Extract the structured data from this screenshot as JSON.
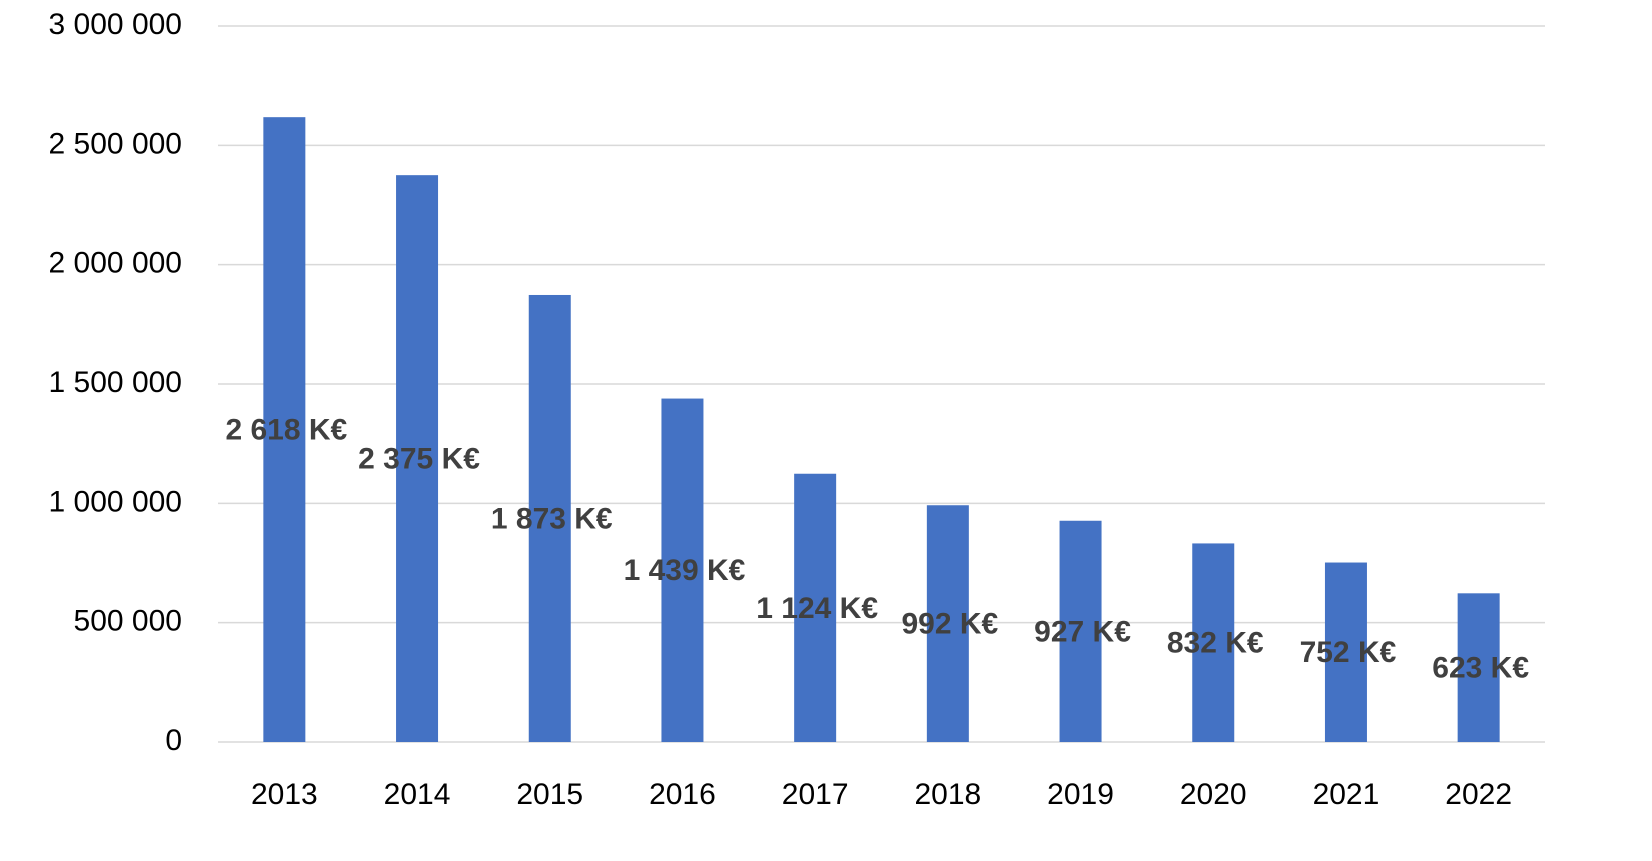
{
  "chart_data": {
    "type": "bar",
    "categories": [
      "2013",
      "2014",
      "2015",
      "2016",
      "2017",
      "2018",
      "2019",
      "2020",
      "2021",
      "2022"
    ],
    "values": [
      2618000,
      2375000,
      1873000,
      1439000,
      1124000,
      992000,
      927000,
      832000,
      752000,
      623000
    ],
    "value_labels": [
      "2 618 K€",
      "2 375 K€",
      "1 873 K€",
      "1 439 K€",
      "1 124 K€",
      "992 K€",
      "927 K€",
      "832 K€",
      "752 K€",
      "623 K€"
    ],
    "color": "#4472c4",
    "ylim": [
      0,
      3000000
    ],
    "yticks": [
      0,
      {
        "value": 500000,
        "label": "500 000"
      },
      {
        "value": 1000000,
        "label": "1 000 000"
      },
      {
        "value": 1500000,
        "label": "1 500 000"
      },
      {
        "value": 2000000,
        "label": "2 000 000"
      },
      {
        "value": 2500000,
        "label": "2 500 000"
      },
      {
        "value": 3000000,
        "label": "3 000 000"
      }
    ],
    "grid": true
  }
}
